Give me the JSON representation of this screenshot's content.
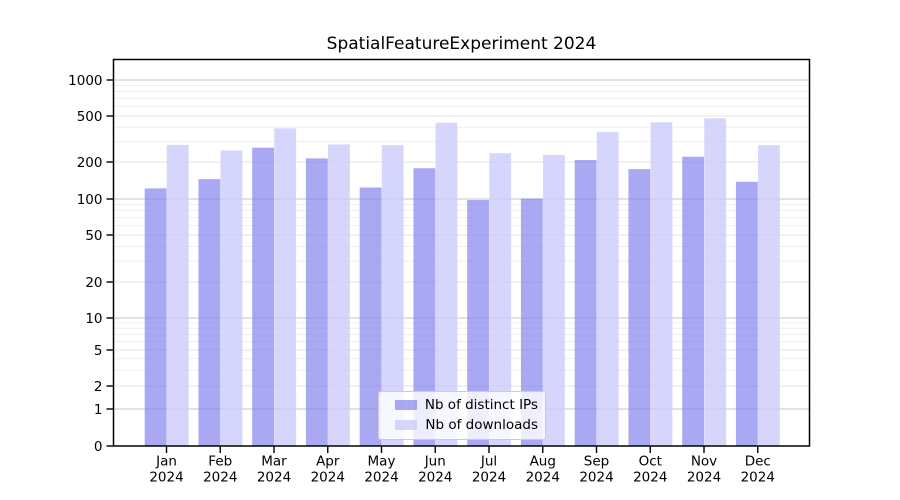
{
  "title": "SpatialFeatureExperiment 2024",
  "chart_data": {
    "type": "bar",
    "title": "SpatialFeatureExperiment 2024",
    "x_categories": [
      "Jan",
      "Feb",
      "Mar",
      "Apr",
      "May",
      "Jun",
      "Jul",
      "Aug",
      "Sep",
      "Oct",
      "Nov",
      "Dec"
    ],
    "x_year_suffix": "2024",
    "series": [
      {
        "name": "Nb of distinct IPs",
        "color": "rgba(134,134,238,0.72)",
        "values": [
          122,
          145,
          266,
          215,
          124,
          178,
          98,
          101,
          208,
          175,
          222,
          138
        ]
      },
      {
        "name": "Nb of downloads",
        "color": "rgba(202,202,252,0.78)",
        "values": [
          281,
          252,
          391,
          284,
          280,
          437,
          238,
          230,
          363,
          441,
          477,
          280
        ]
      }
    ],
    "y_axis": {
      "scale": "symlog",
      "ticks": [
        0,
        1,
        2,
        5,
        10,
        20,
        50,
        100,
        200,
        500,
        1000
      ],
      "range": [
        0,
        1000
      ]
    },
    "grid": true,
    "legend_position": "inside-bottom-center"
  },
  "colors": {
    "major_gridline": "#c6c6c6",
    "minor_gridline": "#ebebeb",
    "axis_frame": "#000000"
  }
}
